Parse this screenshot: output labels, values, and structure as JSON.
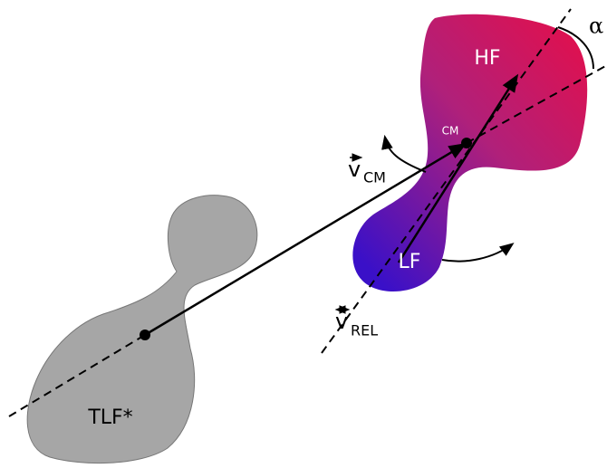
{
  "labels": {
    "tlf": "TLF*",
    "hf": "HF",
    "lf": "LF",
    "cm": "CM",
    "alpha": "α",
    "v_cm": {
      "symbol": "v",
      "subscript": "CM"
    },
    "v_rel": {
      "symbol": "v",
      "subscript": "REL"
    }
  }
}
